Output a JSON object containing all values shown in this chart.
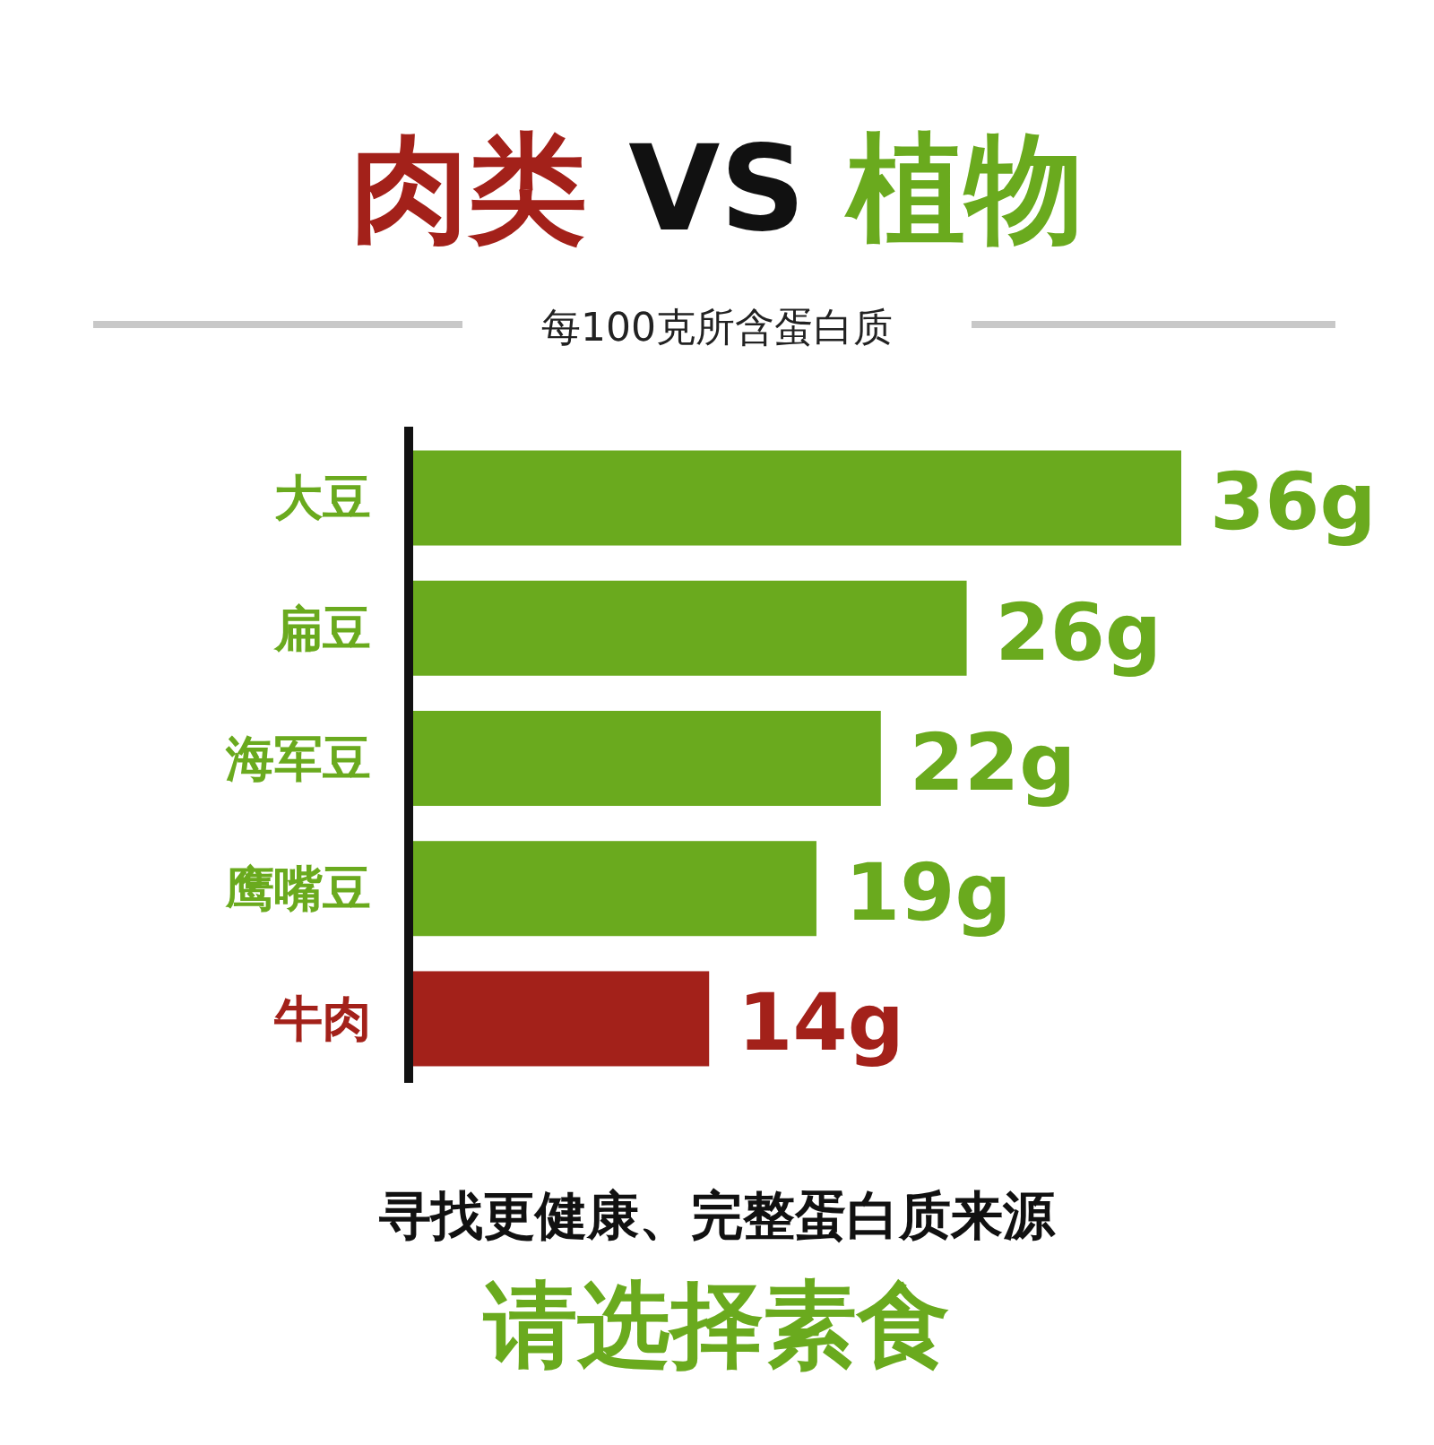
{
  "chart_data": {
    "type": "bar",
    "orientation": "horizontal",
    "title": "肉类 VS 植物",
    "subtitle": "每100克所含蛋白质",
    "categories": [
      "大豆",
      "扁豆",
      "海军豆",
      "鹰嘴豆",
      "牛肉"
    ],
    "values": [
      36,
      26,
      22,
      19,
      14
    ],
    "colors": [
      "#6aaa1e",
      "#6aaa1e",
      "#6aaa1e",
      "#6aaa1e",
      "#a3211a"
    ],
    "value_labels": [
      "36g",
      "26g",
      "22g",
      "19g",
      "14g"
    ],
    "annotations": [
      "寻找更健康、完整蛋白质来源",
      "请选择素食"
    ]
  }
}
